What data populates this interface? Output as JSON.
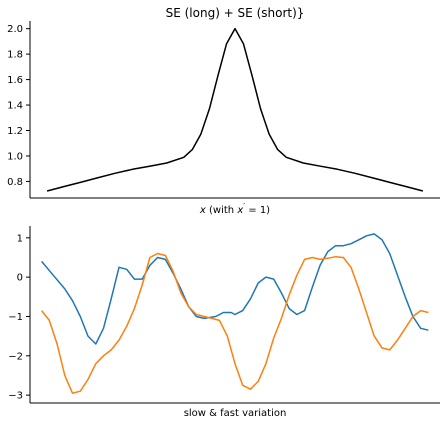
{
  "chart_data": [
    {
      "type": "line",
      "title": "SE (long) + SE (short)}",
      "xlabel_parts": {
        "pre": "x",
        "mid": " (with ",
        "var": "x",
        "sup": "′",
        "post": " = 1)"
      },
      "ylabel": "",
      "xlim": [
        -6,
        6
      ],
      "ylim": [
        0.67,
        2.06
      ],
      "yticks": [
        0.8,
        1.0,
        1.2,
        1.4,
        1.6,
        1.8,
        2.0
      ],
      "ytick_labels": [
        "0.8",
        "1.0",
        "1.2",
        "1.4",
        "1.6",
        "1.8",
        "2.0"
      ],
      "show_xticks": false,
      "grid": false,
      "color": "#000000",
      "series": [
        {
          "x": [
            -5.5,
            -5,
            -4.5,
            -4,
            -3.5,
            -3,
            -2.5,
            -2,
            -1.5,
            -1.25,
            -1,
            -0.75,
            -0.5,
            -0.25,
            0,
            0.25,
            0.5,
            0.75,
            1,
            1.25,
            1.5,
            2,
            2.5,
            3,
            3.5,
            4,
            4.5,
            5,
            5.5
          ],
          "y": [
            0.725,
            0.76,
            0.795,
            0.83,
            0.865,
            0.895,
            0.92,
            0.945,
            0.99,
            1.05,
            1.17,
            1.37,
            1.63,
            1.88,
            2.0,
            1.88,
            1.63,
            1.37,
            1.17,
            1.05,
            0.99,
            0.945,
            0.92,
            0.895,
            0.865,
            0.83,
            0.795,
            0.76,
            0.725
          ]
        }
      ]
    },
    {
      "type": "line",
      "title": "",
      "xlabel": "slow & fast variation",
      "ylabel": "",
      "xlim": [
        -0.3,
        10.3
      ],
      "ylim": [
        -3.2,
        1.3
      ],
      "yticks": [
        -3,
        -2,
        -1,
        0,
        1
      ],
      "ytick_labels": [
        "−3",
        "−2",
        "−1",
        "0",
        "1"
      ],
      "show_xticks": false,
      "grid": false,
      "series": [
        {
          "color": "#1f77b4",
          "x": [
            0,
            0.3,
            0.6,
            0.8,
            1.0,
            1.2,
            1.4,
            1.6,
            1.8,
            2.0,
            2.2,
            2.4,
            2.6,
            2.8,
            3.0,
            3.2,
            3.4,
            3.6,
            3.8,
            4.0,
            4.2,
            4.5,
            4.7,
            4.9,
            5.0,
            5.2,
            5.4,
            5.6,
            5.8,
            6.0,
            6.2,
            6.4,
            6.6,
            6.8,
            7.0,
            7.2,
            7.4,
            7.6,
            7.8,
            8.0,
            8.2,
            8.4,
            8.6,
            8.8,
            9.0,
            9.2,
            9.4,
            9.6,
            9.8,
            10.0
          ],
          "y": [
            0.4,
            0.05,
            -0.3,
            -0.6,
            -1.0,
            -1.5,
            -1.7,
            -1.3,
            -0.55,
            0.25,
            0.2,
            -0.05,
            -0.05,
            0.3,
            0.5,
            0.45,
            0.1,
            -0.3,
            -0.75,
            -1.0,
            -1.05,
            -1.0,
            -0.9,
            -0.9,
            -0.95,
            -0.85,
            -0.55,
            -0.15,
            0.0,
            -0.05,
            -0.4,
            -0.8,
            -0.95,
            -0.85,
            -0.25,
            0.3,
            0.65,
            0.8,
            0.8,
            0.85,
            0.95,
            1.05,
            1.1,
            0.95,
            0.6,
            0.05,
            -0.5,
            -1.0,
            -1.3,
            -1.35
          ]
        },
        {
          "color": "#ff7f0e",
          "x": [
            0,
            0.2,
            0.4,
            0.6,
            0.8,
            1.0,
            1.2,
            1.4,
            1.6,
            1.8,
            2.0,
            2.2,
            2.4,
            2.6,
            2.8,
            3.0,
            3.2,
            3.4,
            3.6,
            3.8,
            4.0,
            4.2,
            4.4,
            4.6,
            4.8,
            5.0,
            5.2,
            5.4,
            5.6,
            5.8,
            6.0,
            6.2,
            6.4,
            6.6,
            6.8,
            7.0,
            7.2,
            7.4,
            7.6,
            7.8,
            8.0,
            8.2,
            8.4,
            8.6,
            8.8,
            9.0,
            9.2,
            9.4,
            9.6,
            9.8,
            10.0
          ],
          "y": [
            -0.85,
            -1.1,
            -1.7,
            -2.5,
            -2.95,
            -2.9,
            -2.6,
            -2.2,
            -2.0,
            -1.85,
            -1.6,
            -1.25,
            -0.8,
            -0.2,
            0.5,
            0.6,
            0.55,
            0.15,
            -0.4,
            -0.75,
            -0.95,
            -1.0,
            -1.05,
            -1.1,
            -1.5,
            -2.2,
            -2.75,
            -2.85,
            -2.65,
            -2.2,
            -1.55,
            -1.05,
            -0.45,
            0.05,
            0.45,
            0.5,
            0.45,
            0.48,
            0.52,
            0.5,
            0.25,
            -0.3,
            -0.9,
            -1.5,
            -1.8,
            -1.85,
            -1.6,
            -1.3,
            -1.0,
            -0.85,
            -0.9
          ]
        }
      ]
    }
  ]
}
